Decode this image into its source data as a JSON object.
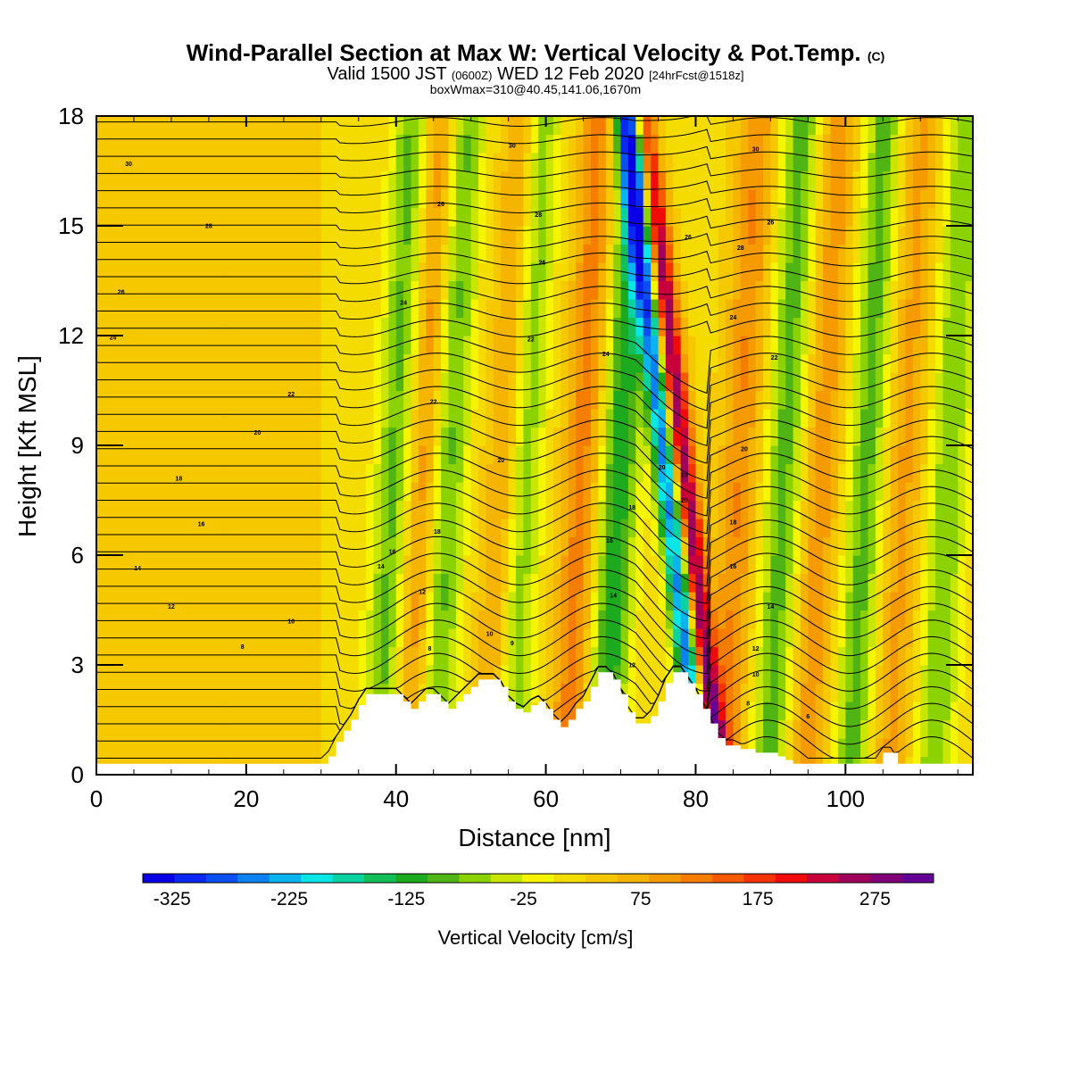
{
  "chart_data": {
    "type": "heatmap",
    "title": "Wind-Parallel Section at Max W: Vertical Velocity & Pot.Temp.",
    "title_mark": "(C)",
    "subtitle": {
      "valid_prefix": "Valid 1500 JST",
      "utc": "(0600Z)",
      "date": "WED 12 Feb 2020",
      "forecast": "[24hrFcst@1518z]"
    },
    "subtitle2": "boxWmax=310@40.45,141.06,1670m",
    "xlabel": "Distance [nm]",
    "ylabel": "Height [Kft MSL]",
    "xlim": [
      0,
      117
    ],
    "ylim": [
      0,
      18
    ],
    "xticks": [
      0,
      20,
      40,
      60,
      80,
      100
    ],
    "yticks": [
      0,
      3,
      6,
      9,
      12,
      15,
      18
    ],
    "colorbar": {
      "title": "Vertical Velocity [cm/s]",
      "min": -350,
      "max": 325,
      "tick_labels": [
        -325,
        -225,
        -125,
        -25,
        75,
        175,
        275
      ],
      "colors": [
        "#0a00e6",
        "#0a28f0",
        "#0a50f0",
        "#0a82f0",
        "#0ab4f0",
        "#0ae6e6",
        "#0ad2a0",
        "#14be5a",
        "#1eaa1e",
        "#50b414",
        "#8cd200",
        "#c8e600",
        "#f5f500",
        "#f5dc00",
        "#f5c800",
        "#f5b400",
        "#f59b00",
        "#f57d00",
        "#f55a00",
        "#f53200",
        "#f00a0a",
        "#c8003c",
        "#a0005a",
        "#820078",
        "#640096"
      ]
    },
    "terrain": {
      "x": [
        0,
        30,
        31,
        32,
        33,
        34,
        35,
        36,
        37,
        38,
        39,
        40,
        41,
        42,
        43,
        44,
        45,
        46,
        47,
        48,
        49,
        50,
        51,
        52,
        53,
        54,
        55,
        56,
        57,
        58,
        59,
        60,
        61,
        62,
        63,
        64,
        65,
        66,
        67,
        68,
        69,
        70,
        71,
        72,
        73,
        74,
        75,
        76,
        77,
        78,
        79,
        80,
        81,
        82,
        83,
        84,
        85,
        86,
        87,
        88,
        89,
        90,
        91,
        92,
        93,
        94,
        95,
        96,
        97,
        98,
        99,
        100,
        101,
        102,
        103,
        104,
        105,
        106,
        107,
        108,
        109,
        110,
        111,
        112,
        113,
        114,
        115,
        116,
        117
      ],
      "height_kft": [
        0.3,
        0.3,
        0.5,
        0.9,
        1.2,
        1.5,
        1.9,
        2.2,
        2.2,
        2.2,
        2.2,
        2.2,
        2.0,
        1.8,
        2.0,
        2.2,
        2.2,
        2.0,
        1.8,
        2.0,
        2.2,
        2.4,
        2.6,
        2.6,
        2.6,
        2.4,
        2.0,
        1.8,
        1.7,
        1.9,
        2.0,
        1.8,
        1.5,
        1.3,
        1.5,
        1.8,
        2.0,
        2.4,
        2.8,
        2.8,
        2.6,
        2.2,
        1.7,
        1.4,
        1.4,
        1.6,
        2.0,
        2.5,
        2.8,
        2.8,
        2.5,
        2.2,
        1.8,
        1.4,
        1.0,
        0.8,
        0.8,
        0.7,
        0.7,
        0.6,
        0.6,
        0.6,
        0.5,
        0.4,
        0.3,
        0.3,
        0.3,
        0.3,
        0.3,
        0.3,
        0.3,
        0.3,
        0.3,
        0.3,
        0.3,
        0.3,
        0.6,
        0.6,
        0.3,
        0.3,
        0.3,
        0.3,
        0.3,
        0.3,
        0.3,
        0.3,
        0.3,
        0.3,
        0.3
      ]
    },
    "vertical_velocity_features": [
      {
        "kind": "updraft",
        "x": 79.5,
        "value": 300,
        "note": "strong"
      },
      {
        "kind": "downdraft",
        "x": 77.5,
        "value": -325
      },
      {
        "kind": "updraft",
        "x": 44,
        "value": 100
      },
      {
        "kind": "updraft",
        "x": 55,
        "value": 100
      },
      {
        "kind": "updraft",
        "x": 65,
        "value": 100
      },
      {
        "kind": "updraft",
        "x": 86,
        "value": 90
      },
      {
        "kind": "updraft",
        "x": 97,
        "value": 80
      },
      {
        "kind": "updraft",
        "x": 108,
        "value": 70
      },
      {
        "kind": "downdraft",
        "x": 40,
        "value": -110
      },
      {
        "kind": "downdraft",
        "x": 47,
        "value": -120
      },
      {
        "kind": "downdraft",
        "x": 57,
        "value": -120
      },
      {
        "kind": "downdraft",
        "x": 70,
        "value": -150
      },
      {
        "kind": "downdraft",
        "x": 92,
        "value": -110
      },
      {
        "kind": "downdraft",
        "x": 103,
        "value": -110
      },
      {
        "kind": "downdraft",
        "x": 114,
        "value": -100
      }
    ],
    "theta_contour_labels": [
      {
        "text": "30",
        "x": 4.3,
        "y": 16.7
      },
      {
        "text": "28",
        "x": 15,
        "y": 15.0
      },
      {
        "text": "26",
        "x": 3.3,
        "y": 13.2
      },
      {
        "text": "24",
        "x": 2.2,
        "y": 11.95
      },
      {
        "text": "22",
        "x": 26,
        "y": 10.4
      },
      {
        "text": "20",
        "x": 21.5,
        "y": 9.35
      },
      {
        "text": "18",
        "x": 11,
        "y": 8.1
      },
      {
        "text": "16",
        "x": 14,
        "y": 6.85
      },
      {
        "text": "14",
        "x": 5.5,
        "y": 5.65
      },
      {
        "text": "12",
        "x": 10,
        "y": 4.6
      },
      {
        "text": "10",
        "x": 26,
        "y": 4.2
      },
      {
        "text": "8",
        "x": 19.5,
        "y": 3.5
      },
      {
        "text": "14",
        "x": 38,
        "y": 5.7
      },
      {
        "text": "16",
        "x": 39.5,
        "y": 6.1
      },
      {
        "text": "12",
        "x": 43.5,
        "y": 5.0
      },
      {
        "text": "18",
        "x": 45.5,
        "y": 6.65
      },
      {
        "text": "8",
        "x": 44.5,
        "y": 3.45
      },
      {
        "text": "10",
        "x": 52.5,
        "y": 3.85
      },
      {
        "text": "9",
        "x": 55.5,
        "y": 3.6
      },
      {
        "text": "22",
        "x": 45,
        "y": 10.2
      },
      {
        "text": "24",
        "x": 41,
        "y": 12.9
      },
      {
        "text": "26",
        "x": 46,
        "y": 15.6
      },
      {
        "text": "30",
        "x": 55.5,
        "y": 17.2
      },
      {
        "text": "28",
        "x": 59,
        "y": 15.3
      },
      {
        "text": "26",
        "x": 59.5,
        "y": 14.0
      },
      {
        "text": "22",
        "x": 58,
        "y": 11.9
      },
      {
        "text": "20",
        "x": 54,
        "y": 8.6
      },
      {
        "text": "24",
        "x": 68,
        "y": 11.5
      },
      {
        "text": "16",
        "x": 68.5,
        "y": 6.4
      },
      {
        "text": "18",
        "x": 71.5,
        "y": 7.3
      },
      {
        "text": "14",
        "x": 69,
        "y": 4.9
      },
      {
        "text": "12",
        "x": 71.5,
        "y": 3.0
      },
      {
        "text": "20",
        "x": 75.5,
        "y": 8.4
      },
      {
        "text": "18",
        "x": 78.5,
        "y": 8.2
      },
      {
        "text": "20",
        "x": 78.5,
        "y": 7.5
      },
      {
        "text": "26",
        "x": 79,
        "y": 14.7
      },
      {
        "text": "30",
        "x": 88,
        "y": 17.1
      },
      {
        "text": "28",
        "x": 86,
        "y": 14.4
      },
      {
        "text": "26",
        "x": 90,
        "y": 15.1
      },
      {
        "text": "24",
        "x": 85,
        "y": 12.5
      },
      {
        "text": "22",
        "x": 90.5,
        "y": 11.4
      },
      {
        "text": "20",
        "x": 86.5,
        "y": 8.9
      },
      {
        "text": "18",
        "x": 85,
        "y": 6.9
      },
      {
        "text": "16",
        "x": 85,
        "y": 5.7
      },
      {
        "text": "14",
        "x": 90,
        "y": 4.6
      },
      {
        "text": "12",
        "x": 88,
        "y": 3.45
      },
      {
        "text": "10",
        "x": 88,
        "y": 2.75
      },
      {
        "text": "8",
        "x": 87,
        "y": 1.95
      },
      {
        "text": "6",
        "x": 95,
        "y": 1.6
      }
    ]
  }
}
